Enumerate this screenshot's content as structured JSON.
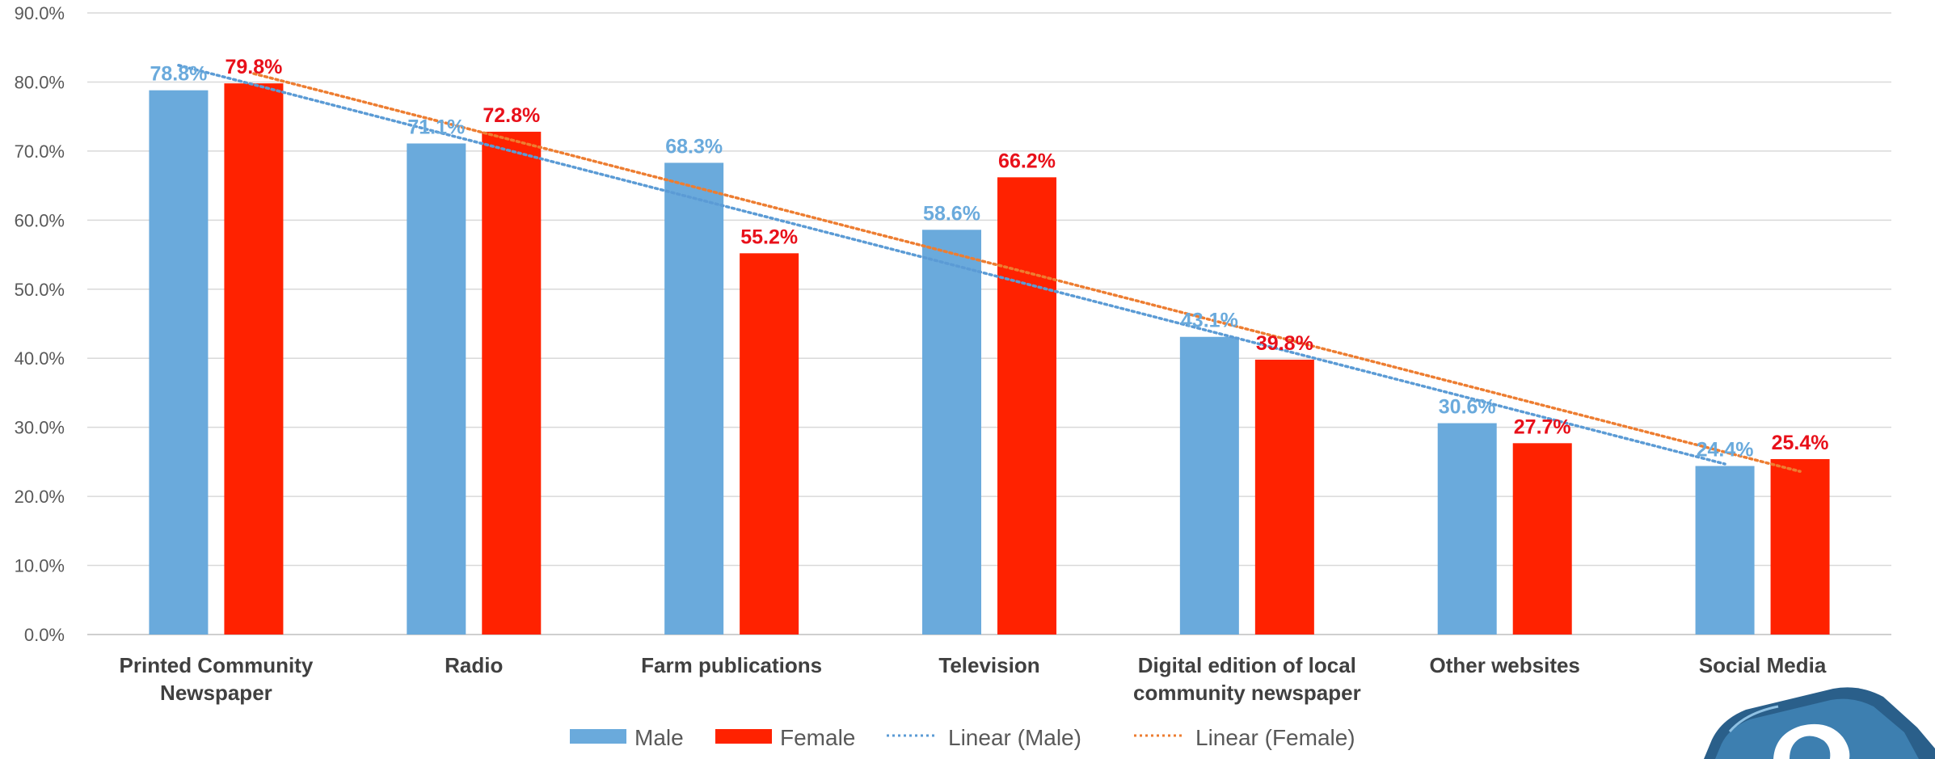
{
  "chart_data": {
    "type": "bar",
    "categories": [
      [
        "Printed Community",
        "Newspaper"
      ],
      [
        "Radio"
      ],
      [
        "Farm publications"
      ],
      [
        "Television"
      ],
      [
        "Digital edition of local",
        "community newspaper"
      ],
      [
        "Other websites"
      ],
      [
        "Social Media"
      ]
    ],
    "series": [
      {
        "name": "Male",
        "color": "#6aaadc",
        "values": [
          78.8,
          71.1,
          68.3,
          58.6,
          43.1,
          30.6,
          24.4
        ],
        "labels": [
          "78.8%",
          "71.1%",
          "68.3%",
          "58.6%",
          "43.1%",
          "30.6%",
          "24.4%"
        ]
      },
      {
        "name": "Female",
        "color": "#ff2200",
        "label_color": "#e8101a",
        "values": [
          79.8,
          72.8,
          55.2,
          66.2,
          39.8,
          27.7,
          25.4
        ],
        "labels": [
          "79.8%",
          "72.8%",
          "55.2%",
          "66.2%",
          "39.8%",
          "27.7%",
          "25.4%"
        ]
      }
    ],
    "trendlines": [
      {
        "name": "Linear (Male)",
        "series": "Male",
        "color": "#5b9bd5",
        "style": "dotted"
      },
      {
        "name": "Linear (Female)",
        "series": "Female",
        "color": "#ed7d31",
        "style": "dotted"
      }
    ],
    "ylim": [
      0,
      90
    ],
    "yticks": [
      "0.0%",
      "10.0%",
      "20.0%",
      "30.0%",
      "40.0%",
      "50.0%",
      "60.0%",
      "70.0%",
      "80.0%",
      "90.0%"
    ],
    "ytick_values": [
      0,
      10,
      20,
      30,
      40,
      50,
      60,
      70,
      80,
      90
    ],
    "grid": true,
    "legend_position": "bottom",
    "title": "",
    "xlabel": "",
    "ylabel": "",
    "gridline_color": "#d9d9d9",
    "axis_text_color": "#595959"
  }
}
